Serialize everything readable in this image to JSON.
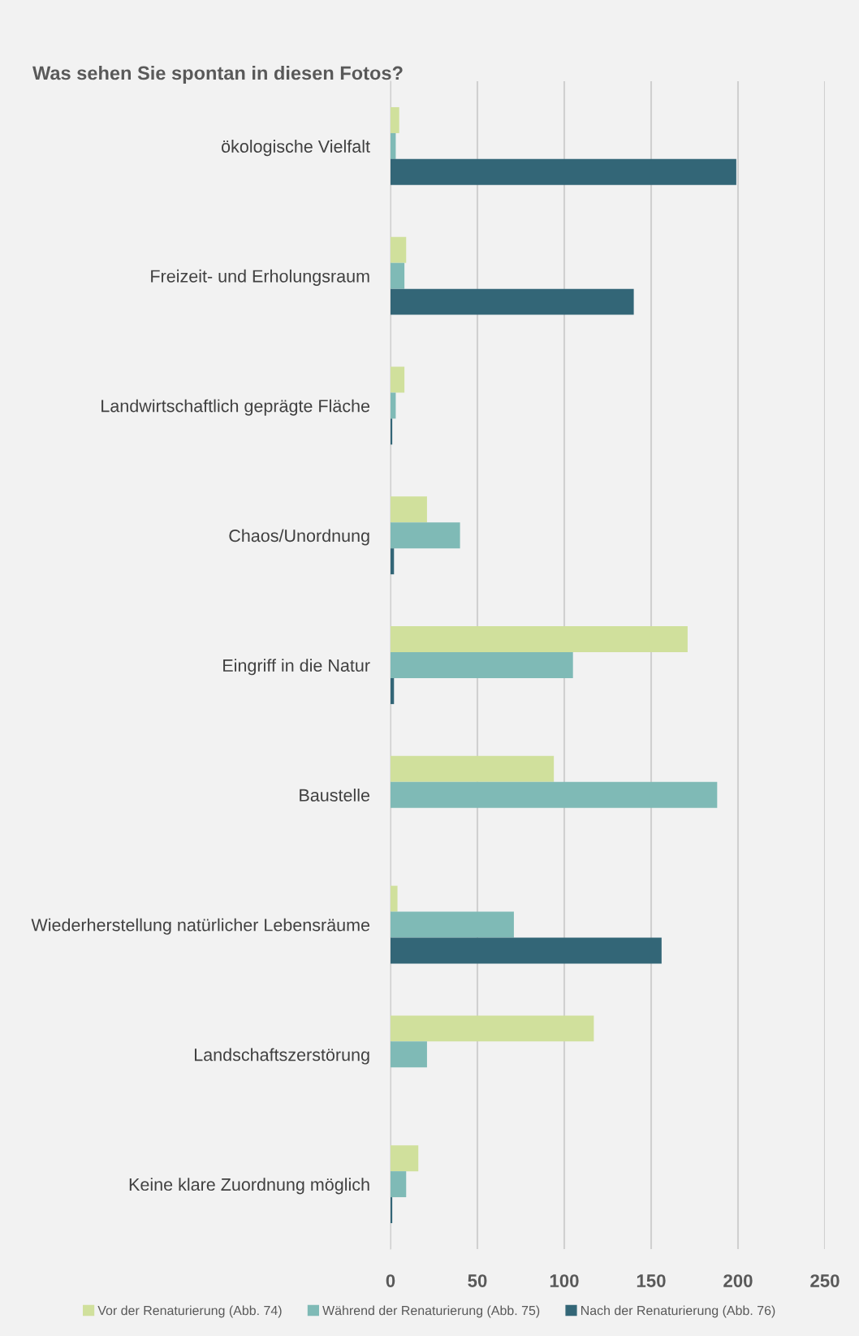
{
  "chart_data": {
    "type": "bar",
    "orientation": "horizontal",
    "title": "Was sehen Sie spontan in diesen Fotos?",
    "categories": [
      "ökologische Vielfalt",
      "Freizeit- und Erholungsraum",
      "Landwirtschaftlich geprägte Fläche",
      "Chaos/Unordnung",
      "Eingriff in die Natur",
      "Baustelle",
      "Wiederherstellung natürlicher Lebensräume",
      "Landschaftszerstörung",
      "Keine klare Zuordnung möglich"
    ],
    "series": [
      {
        "name": "Vor der Renaturierung (Abb. 74)",
        "color": "#d0e09c",
        "values": [
          5,
          9,
          8,
          21,
          171,
          94,
          4,
          117,
          16
        ]
      },
      {
        "name": "Während der Renaturierung (Abb. 75)",
        "color": "#7fbab6",
        "values": [
          3,
          8,
          3,
          40,
          105,
          188,
          71,
          21,
          9
        ]
      },
      {
        "name": "Nach der Renaturierung (Abb. 76)",
        "color": "#336677",
        "values": [
          199,
          140,
          1,
          2,
          2,
          0,
          156,
          0,
          1
        ]
      }
    ],
    "xlim": [
      0,
      250
    ],
    "xticks": [
      0,
      50,
      100,
      150,
      200,
      250
    ],
    "grid": "x",
    "legend": "bottom"
  }
}
